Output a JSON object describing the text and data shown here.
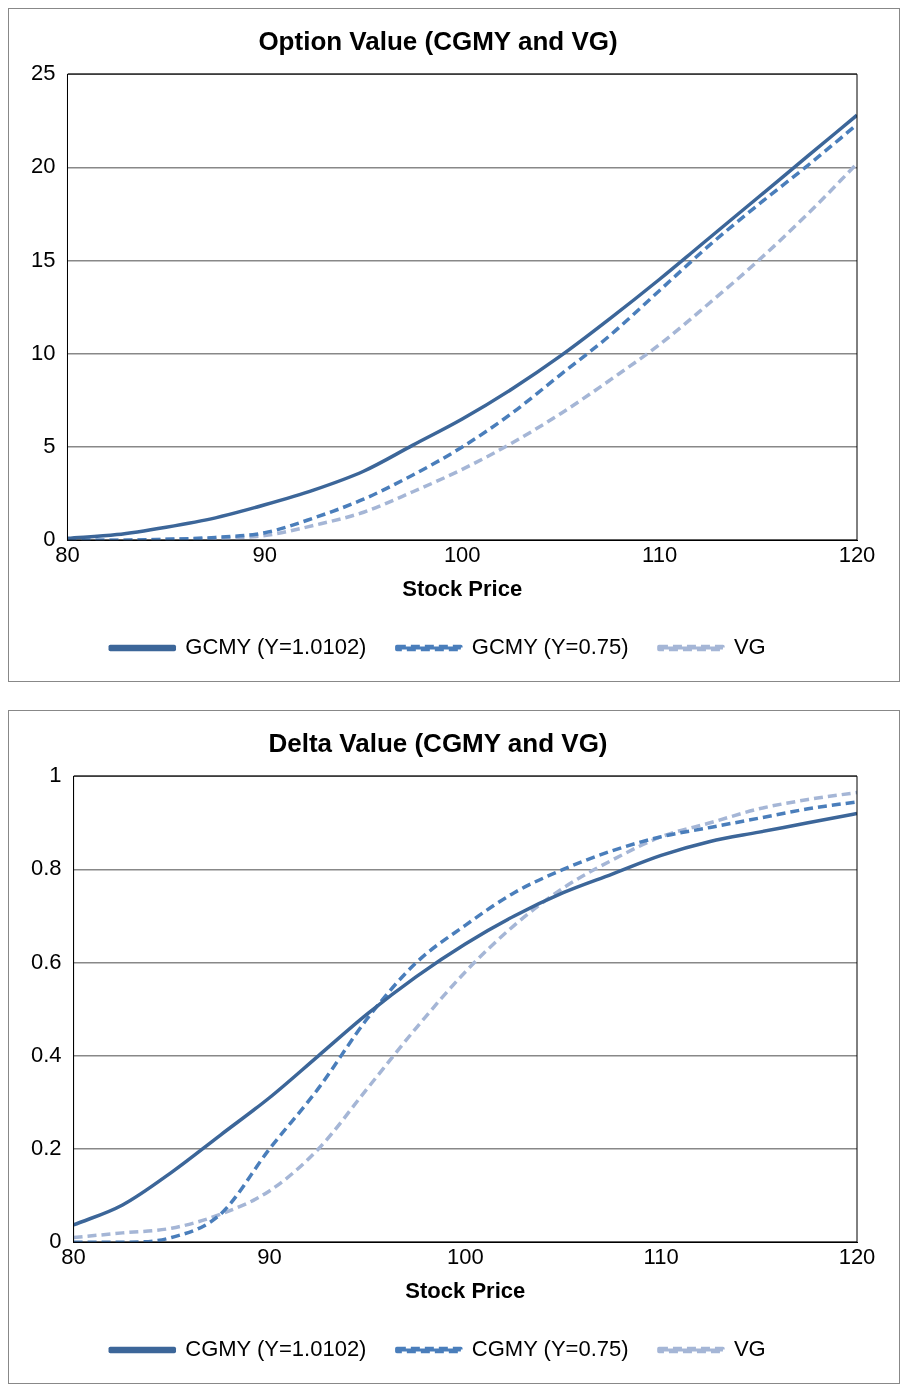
{
  "chart_data": [
    {
      "type": "line",
      "title": "Option Value (CGMY and VG)",
      "xlabel": "Stock Price",
      "x": [
        80,
        82.5,
        85,
        87.5,
        90,
        92.5,
        95,
        97.5,
        100,
        102.5,
        105,
        107.5,
        110,
        112.5,
        115,
        117.5,
        120
      ],
      "xlim": [
        80,
        120
      ],
      "xticks": [
        80,
        90,
        100,
        110,
        120
      ],
      "ylim": [
        0,
        25
      ],
      "yticks": [
        0,
        5,
        10,
        15,
        20,
        25
      ],
      "grid": "y",
      "legend": "bottom",
      "marker": "none",
      "series": [
        {
          "name": "GCMY (Y=1.0102)",
          "color": "#3c6699",
          "line_style": "solid",
          "values": [
            0.1,
            0.3,
            0.7,
            1.2,
            1.9,
            2.7,
            3.7,
            5.1,
            6.5,
            8.1,
            9.9,
            11.9,
            14.0,
            16.2,
            18.4,
            20.6,
            22.8
          ]
        },
        {
          "name": "GCMY (Y=0.75)",
          "color": "#4a7ebb",
          "line_style": "dashed",
          "values": [
            0,
            0,
            0.05,
            0.15,
            0.4,
            1.2,
            2.2,
            3.5,
            5.0,
            6.8,
            8.9,
            11.0,
            13.4,
            15.8,
            18.0,
            20.1,
            22.3
          ]
        },
        {
          "name": "VG",
          "color": "#a5b6d6",
          "line_style": "dashed",
          "values": [
            0,
            0,
            0.05,
            0.1,
            0.25,
            0.8,
            1.5,
            2.6,
            3.8,
            5.2,
            6.8,
            8.6,
            10.5,
            12.7,
            15.0,
            17.5,
            20.2
          ]
        }
      ]
    },
    {
      "type": "line",
      "title": "Delta Value (CGMY and VG)",
      "xlabel": "Stock Price",
      "x": [
        80,
        82.5,
        85,
        87.5,
        90,
        92.5,
        95,
        97.5,
        100,
        102.5,
        105,
        107.5,
        110,
        112.5,
        115,
        117.5,
        120
      ],
      "xlim": [
        80,
        120
      ],
      "xticks": [
        80,
        90,
        100,
        110,
        120
      ],
      "ylim": [
        0,
        1
      ],
      "yticks": [
        0,
        0.2,
        0.4,
        0.6,
        0.8,
        1
      ],
      "grid": "y",
      "legend": "bottom",
      "marker": "none",
      "series": [
        {
          "name": "CGMY (Y=1.0102)",
          "color": "#3c6699",
          "line_style": "solid",
          "values": [
            0.037,
            0.08,
            0.15,
            0.23,
            0.31,
            0.4,
            0.49,
            0.57,
            0.64,
            0.7,
            0.75,
            0.79,
            0.83,
            0.86,
            0.88,
            0.9,
            0.92
          ]
        },
        {
          "name": "CGMY (Y=0.75)",
          "color": "#4a7ebb",
          "line_style": "dashed",
          "values": [
            0,
            0,
            0.01,
            0.06,
            0.2,
            0.33,
            0.48,
            0.6,
            0.68,
            0.75,
            0.8,
            0.84,
            0.87,
            0.89,
            0.91,
            0.93,
            0.945
          ]
        },
        {
          "name": "VG",
          "color": "#a5b6d6",
          "line_style": "dashed",
          "values": [
            0.01,
            0.02,
            0.03,
            0.06,
            0.11,
            0.2,
            0.33,
            0.46,
            0.58,
            0.68,
            0.76,
            0.82,
            0.87,
            0.9,
            0.93,
            0.95,
            0.965
          ]
        }
      ]
    }
  ]
}
